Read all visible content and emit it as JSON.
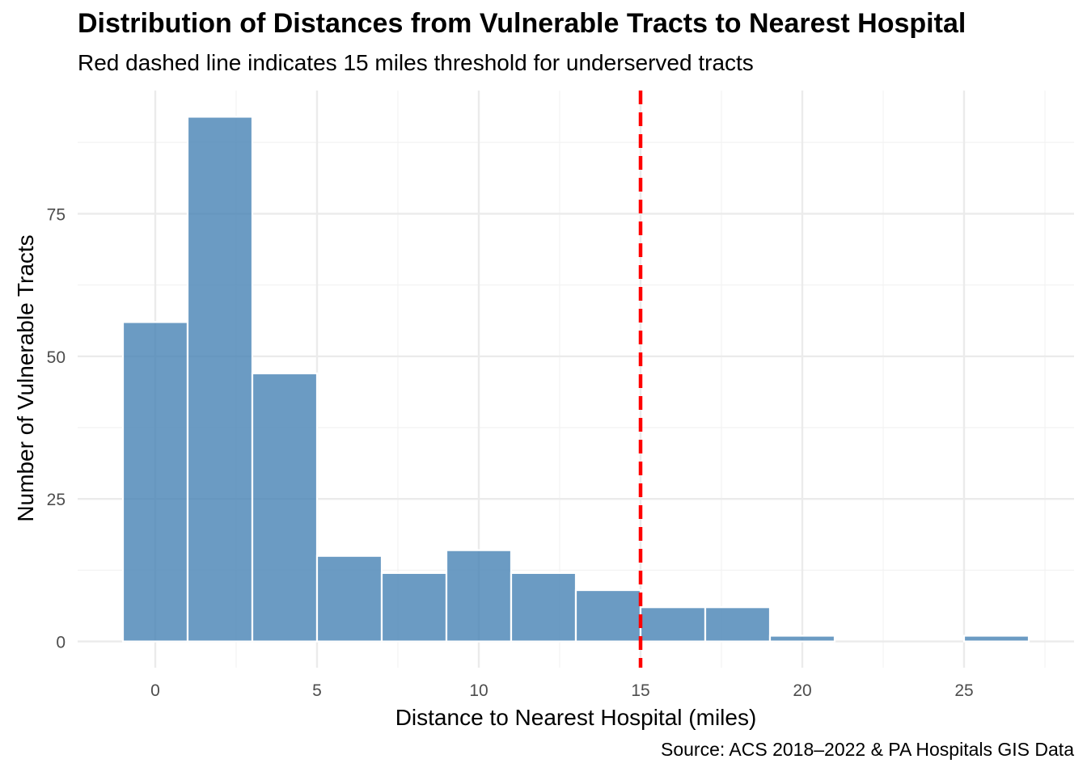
{
  "chart_data": {
    "type": "bar",
    "title": "Distribution of Distances from Vulnerable Tracts to Nearest Hospital",
    "subtitle": "Red dashed line indicates 15 miles threshold for underserved tracts",
    "caption": "Source: ACS 2018–2022 & PA Hospitals GIS Data",
    "xlabel": "Distance to Nearest Hospital (miles)",
    "ylabel": "Number of Vulnerable Tracts",
    "bin_width": 2,
    "bin_starts": [
      -1,
      1,
      3,
      5,
      7,
      9,
      11,
      13,
      15,
      17,
      19,
      21,
      23,
      25
    ],
    "values": [
      56,
      92,
      47,
      15,
      12,
      16,
      12,
      9,
      6,
      6,
      1,
      0,
      0,
      1
    ],
    "xlim": [
      -2.4,
      28.4
    ],
    "ylim": [
      -4.6,
      96.6
    ],
    "x_ticks": [
      0,
      5,
      10,
      15,
      20,
      25
    ],
    "y_ticks": [
      0,
      25,
      50,
      75
    ],
    "threshold": 15,
    "bar_color": "#4682B4",
    "threshold_color": "#FF0000",
    "grid": true,
    "legend": "none"
  }
}
